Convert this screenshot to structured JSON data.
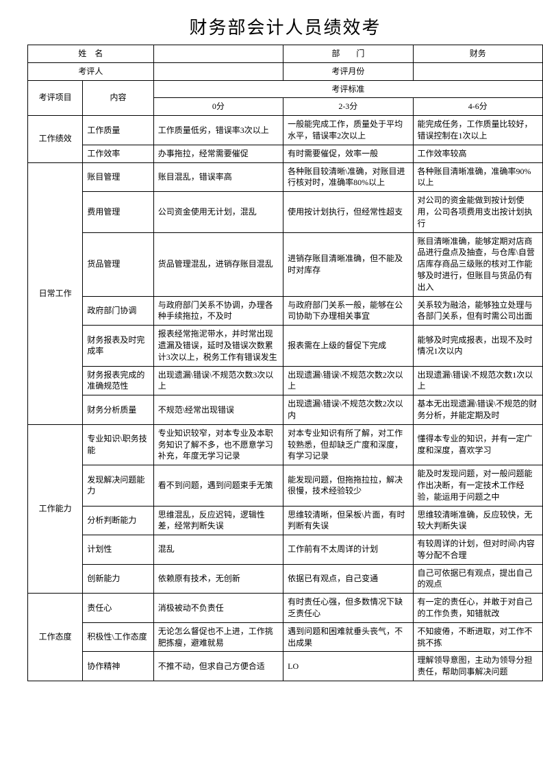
{
  "title": "财务部会计人员绩效考",
  "header": {
    "name_label": "姓　名",
    "dept_label": "部　　门",
    "dept_value": "财务",
    "reviewer_label": "考评人",
    "month_label": "考评月份"
  },
  "cols": {
    "project": "考评项目",
    "content": "内容",
    "standard": "考评标准",
    "s0": "0分",
    "s23": "2-3分",
    "s46": "4-6分"
  },
  "groups": [
    {
      "name": "工作绩效",
      "rows": [
        {
          "content": "工作质量",
          "c0": "工作质量低劣，错误率3次以上",
          "c1": "一般能完成工作，质量处于平均水平，错误率2次以上",
          "c2": "能完成任务，工作质量比较好，错误控制在1次以上"
        },
        {
          "content": "工作效率",
          "c0": "办事拖拉，经常需要催促",
          "c1": "有时需要催促，效率一般",
          "c2": "工作效率较高"
        }
      ]
    },
    {
      "name": "日常工作",
      "rows": [
        {
          "content": "账目管理",
          "c0": "账目混乱，错误率高",
          "c1": "各种账目较清晰\\准确，对账目进行核对时，准确率80%以上",
          "c2": "各种账目清晰准确，准确率90%以上"
        },
        {
          "content": "费用管理",
          "c0": "公司资金使用无计划，混乱",
          "c1": "使用按计划执行，但经常性超支",
          "c2": "对公司的资金能做到按计划使用，公司各项费用支出按计划执行"
        },
        {
          "content": "货品管理",
          "c0": "货品管理混乱，进销存账目混乱",
          "c1": "进销存账目清晰准确，但不能及时对库存",
          "c2": "账目清晰准确，能够定期对店商品进行盘点及抽查，与仓库\\自营店库存商品三级账的核对工作能够及时进行，但账目与货品仍有出入"
        },
        {
          "content": "政府部门协调",
          "c0": "与政府部门关系不协调，办理各种手续拖拉，不及时",
          "c1": "与政府部门关系一般，能够在公司协助下办理相关事宜",
          "c2": "关系较为融洽，能够独立处理与各部门关系，但有时需公司出面"
        },
        {
          "content": "财务报表及时完成率",
          "c0": "报表经常拖泥带水，并时常出现遗漏及错误，延时及错误次数累计3次以上，税务工作有错误发生",
          "c1": "报表需在上级的督促下完成",
          "c2": "能够及时完成报表，出现不及时情况1次以内"
        },
        {
          "content": "财务报表完成的准确规范性",
          "c0": "出现遗漏\\错误\\不规范次数3次以上",
          "c1": "出现遗漏\\错误\\不规范次数2次以上",
          "c2": "出现遗漏\\错误\\不规范次数1次以上"
        },
        {
          "content": "财务分析质量",
          "c0": "不规范\\经常出现错误",
          "c1": "出现遗漏\\错误\\不规范次数2次以内",
          "c2": "基本无出现遗漏\\错误\\不规范的财务分析，并能定期及时"
        }
      ]
    },
    {
      "name": "工作能力",
      "rows": [
        {
          "content": "专业知识\\职务技能",
          "c0": "专业知识较窄，对本专业及本职务知识了解不多，也不愿意学习补充，年度无学习记录",
          "c1": "对本专业知识有所了解，对工作较熟悉，但却缺乏广度和深度，有学习记录",
          "c2": "懂得本专业的知识，并有一定广度和深度，喜欢学习"
        },
        {
          "content": "发现解决问题能力",
          "c0": "看不到问题，遇到问题束手无策",
          "c1": "能发现问题，但拖拖拉拉，解决很慢，技术经验较少",
          "c2": "能及时发现问题，对一般问题能作出决断，有一定技术工作经验，能运用于问题之中"
        },
        {
          "content": "分析判断能力",
          "c0": "思维混乱，反应迟钝，逻辑性差，经常判断失误",
          "c1": "思维较清晰，但呆板\\片面，有时判断有失误",
          "c2": "思维较清晰准确，反应较快，无较大判断失误"
        },
        {
          "content": "计划性",
          "c0": "混乱",
          "c1": "工作前有不太周详的计划",
          "c2": "有较周详的计划，但对时间\\内容等分配不合理"
        },
        {
          "content": "创新能力",
          "c0": "依赖原有技术，无创新",
          "c1": "依据已有观点，自己变通",
          "c2": "自己可依据已有观点，提出自己的观点"
        }
      ]
    },
    {
      "name": "工作态度",
      "rows": [
        {
          "content": "责任心",
          "c0": "消极被动不负责任",
          "c1": "有时责任心强，但多数情况下缺乏责任心",
          "c2": "有一定的责任心，并敢于对自己的工作负责，知错就改"
        },
        {
          "content": "积极性\\工作态度",
          "c0": "无论怎么督促也不上进，工作挑肥拣瘦，避难就易",
          "c1": "遇到问题和困难就垂头丧气，不出成果",
          "c2": "不知疲倦，不断进取，对工作不挑不拣"
        },
        {
          "content": "协作精神",
          "c0": "不推不动，但求自己方便合适",
          "c1": "LO",
          "c2": "理解领导意图，主动为领导分担责任，帮助同事解决问题"
        }
      ]
    }
  ]
}
